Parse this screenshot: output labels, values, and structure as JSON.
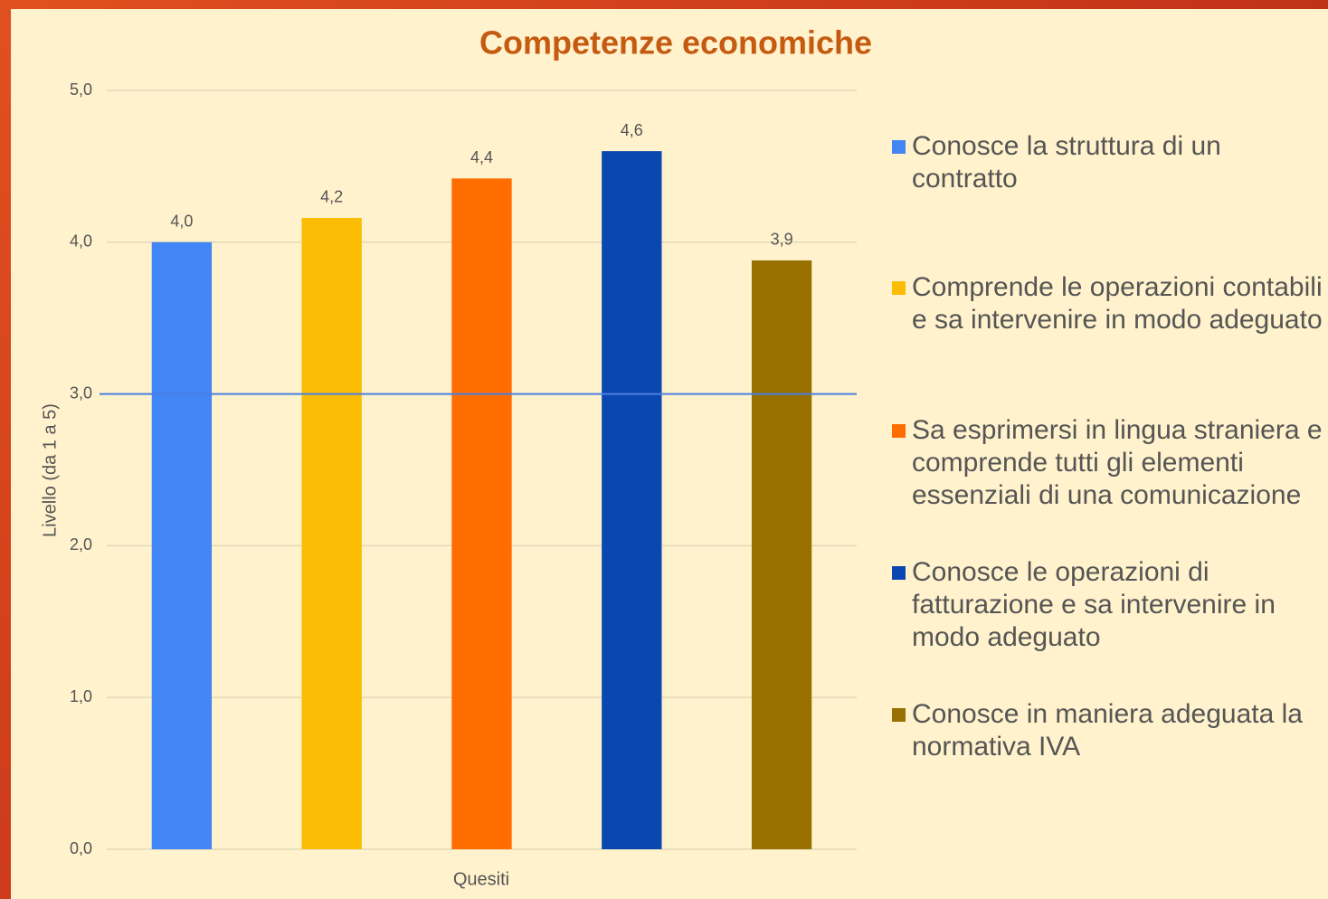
{
  "chart_data": {
    "type": "bar",
    "title": "Competenze economiche",
    "xlabel": "Quesiti",
    "ylabel": "Livello (da 1 a 5)",
    "categories": [
      null
    ],
    "series": [
      {
        "name": "Conosce la struttura di un contratto",
        "color": "#4285f4",
        "values": [
          4.0
        ],
        "value_labels": [
          "4,0"
        ]
      },
      {
        "name": "Comprende le operazioni contabili e sa intervenire in modo adeguato",
        "color": "#fbbc04",
        "values": [
          4.16
        ],
        "value_labels": [
          "4,2"
        ]
      },
      {
        "name": "Sa esprimersi in lingua straniera e comprende tutti gli elementi essenziali di una comunicazione",
        "color": "#ff6d01",
        "values": [
          4.42
        ],
        "value_labels": [
          "4,4"
        ]
      },
      {
        "name": "Conosce le operazioni di fatturazione e sa intervenire in modo adeguato",
        "color": "#0b47b0",
        "values": [
          4.6
        ],
        "value_labels": [
          "4,6"
        ]
      },
      {
        "name": "Conosce in maniera adeguata la normativa IVA",
        "color": "#977000",
        "values": [
          3.88
        ],
        "value_labels": [
          "3,9"
        ]
      }
    ],
    "ylim": [
      0,
      5
    ],
    "yticks": [
      {
        "value": 0,
        "label": "0,0"
      },
      {
        "value": 1,
        "label": "1,0"
      },
      {
        "value": 2,
        "label": "2,0"
      },
      {
        "value": 3,
        "label": "3,0"
      },
      {
        "value": 4,
        "label": "4,0"
      },
      {
        "value": 5,
        "label": "5,0"
      }
    ],
    "grid": true,
    "reference_line": {
      "value": 3,
      "color": "#4a7fe0"
    },
    "legend": "right"
  }
}
